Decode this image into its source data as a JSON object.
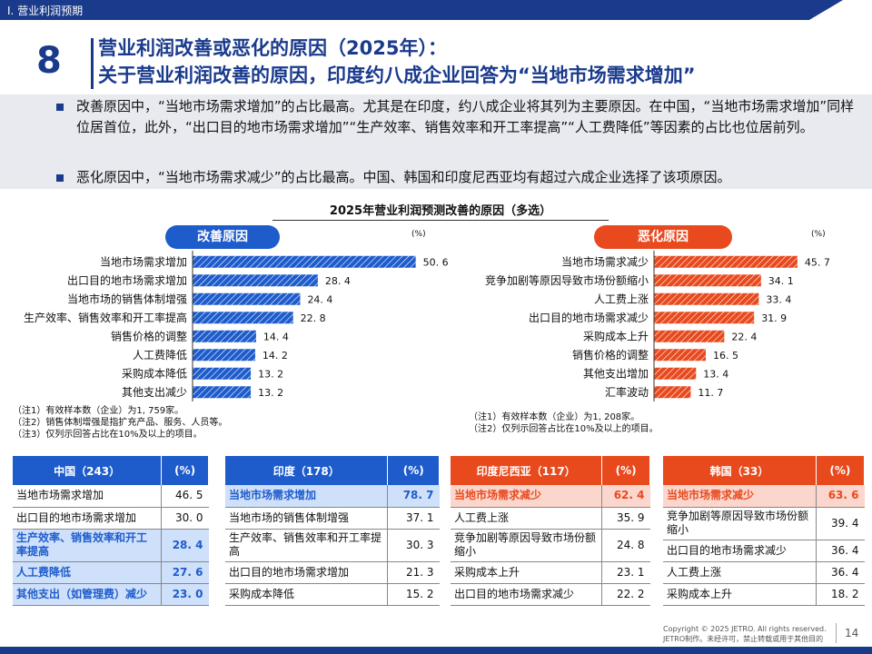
{
  "header": {
    "section": "Ⅰ. 营业利润预期",
    "page_number": "8",
    "title_line1": "营业利润改善或恶化的原因（2025年）：",
    "title_line2": "关于营业利润改善的原因，印度约八成企业回答为“当地市场需求增加”"
  },
  "summary": {
    "bullet1": "改善原因中，“当地市场需求增加”的占比最高。尤其是在印度，约八成企业将其列为主要原因。在中国，“当地市场需求增加”同样位居首位，此外，“出口目的地市场需求增加”“生产效率、销售效率和开工率提高”“人工费降低”等因素的占比也位居前列。",
    "bullet2": "恶化原因中，“当地市场需求减少”的占比最高。中国、韩国和印度尼西亚均有超过六成企业选择了该项原因。"
  },
  "chart_title": "2025年营业利润预测改善的原因（多选）",
  "unit": "(%)",
  "chart_data": [
    {
      "type": "bar",
      "orientation": "horizontal",
      "title": "改善原因",
      "color": "#1e5ccc",
      "categories": [
        "当地市场需求增加",
        "出口目的地市场需求增加",
        "当地市场的销售体制增强",
        "生产效率、销售效率和开工率提高",
        "销售价格的调整",
        "人工费降低",
        "采购成本降低",
        "其他支出减少"
      ],
      "values": [
        50.6,
        28.4,
        24.4,
        22.8,
        14.4,
        14.2,
        13.2,
        13.2
      ],
      "value_labels": [
        "50. 6",
        "28. 4",
        "24. 4",
        "22. 8",
        "14. 4",
        "14. 2",
        "13. 2",
        "13. 2"
      ],
      "xlim": [
        0,
        55
      ],
      "notes": [
        "（注1）有效样本数（企业）为1, 759家。",
        "（注2）销售体制增强是指扩充产品、服务、人员等。",
        "（注3）仅列示回答占比在10%及以上的项目。"
      ]
    },
    {
      "type": "bar",
      "orientation": "horizontal",
      "title": "恶化原因",
      "color": "#e84a1e",
      "categories": [
        "当地市场需求减少",
        "竞争加剧等原因导致市场份额缩小",
        "人工费上涨",
        "出口目的地市场需求减少",
        "采购成本上升",
        "销售价格的调整",
        "其他支出增加",
        "汇率波动"
      ],
      "values": [
        45.7,
        34.1,
        33.4,
        31.9,
        22.4,
        16.5,
        13.4,
        11.7
      ],
      "value_labels": [
        "45. 7",
        "34. 1",
        "33. 4",
        "31. 9",
        "22. 4",
        "16. 5",
        "13. 4",
        "11. 7"
      ],
      "xlim": [
        0,
        55
      ],
      "notes": [
        "（注1）有效样本数（企业）为1, 208家。",
        "（注2）仅列示回答占比在10%及以上的项目。"
      ]
    },
    {
      "type": "table",
      "title": "中国（243）",
      "unit": "(%)",
      "header_color": "#1e5ccc",
      "highlight_color": "#cfe0fa",
      "rows": [
        {
          "label": "当地市场需求增加",
          "value": "46. 5",
          "highlight": false
        },
        {
          "label": "出口目的地市场需求增加",
          "value": "30. 0",
          "highlight": false
        },
        {
          "label": "生产效率、销售效率和开工率提高",
          "value": "28. 4",
          "highlight": true
        },
        {
          "label": "人工费降低",
          "value": "27. 6",
          "highlight": true
        },
        {
          "label": "其他支出（如管理费）减少",
          "value": "23. 0",
          "highlight": true
        }
      ]
    },
    {
      "type": "table",
      "title": "印度（178）",
      "unit": "(%)",
      "header_color": "#1e5ccc",
      "highlight_color": "#cfe0fa",
      "rows": [
        {
          "label": "当地市场需求增加",
          "value": "78. 7",
          "highlight": true
        },
        {
          "label": "当地市场的销售体制增强",
          "value": "37. 1",
          "highlight": false
        },
        {
          "label": "生产效率、销售效率和开工率提高",
          "value": "30. 3",
          "highlight": false
        },
        {
          "label": "出口目的地市场需求增加",
          "value": "21. 3",
          "highlight": false
        },
        {
          "label": "采购成本降低",
          "value": "15. 2",
          "highlight": false
        }
      ]
    },
    {
      "type": "table",
      "title": "印度尼西亚（117）",
      "unit": "(%)",
      "header_color": "#e84a1e",
      "highlight_color": "#fbd6cc",
      "rows": [
        {
          "label": "当地市场需求减少",
          "value": "62. 4",
          "highlight": true
        },
        {
          "label": "人工费上涨",
          "value": "35. 9",
          "highlight": false
        },
        {
          "label": "竞争加剧等原因导致市场份额缩小",
          "value": "24. 8",
          "highlight": false
        },
        {
          "label": "采购成本上升",
          "value": "23. 1",
          "highlight": false
        },
        {
          "label": "出口目的地市场需求减少",
          "value": "22. 2",
          "highlight": false
        }
      ]
    },
    {
      "type": "table",
      "title": "韩国（33）",
      "unit": "(%)",
      "header_color": "#e84a1e",
      "highlight_color": "#fbd6cc",
      "rows": [
        {
          "label": "当地市场需求减少",
          "value": "63. 6",
          "highlight": true
        },
        {
          "label": "竞争加剧等原因导致市场份额缩小",
          "value": "39. 4",
          "highlight": false
        },
        {
          "label": "出口目的地市场需求减少",
          "value": "36. 4",
          "highlight": false
        },
        {
          "label": "人工费上涨",
          "value": "36. 4",
          "highlight": false
        },
        {
          "label": "采购成本上升",
          "value": "18. 2",
          "highlight": false
        }
      ]
    }
  ],
  "footer": {
    "copyright": "Copyright © 2025 JETRO. All rights reserved.",
    "notice": "JETRO制作。未经许可，禁止转载或用于其他目的",
    "page": "14"
  }
}
